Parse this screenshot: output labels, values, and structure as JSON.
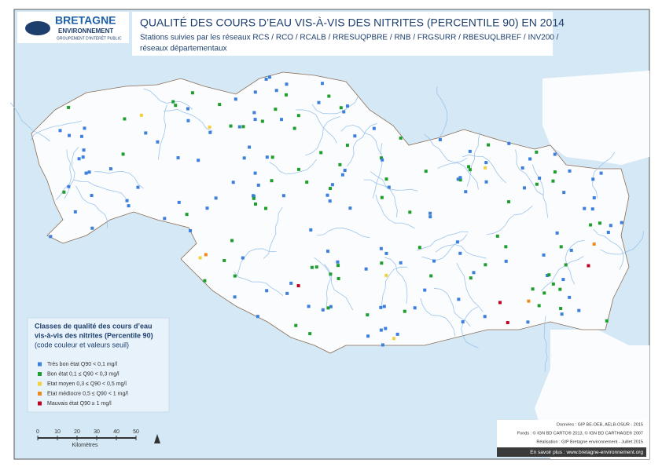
{
  "logo": {
    "name": "BRETAGNE",
    "sub": "ENVIRONNEMENT",
    "tagline": "GROUPEMENT D'INTÉRÊT PUBLIC"
  },
  "header": {
    "title": "QUALITÉ DES COURS D’EAU VIS-À-VIS DES NITRITES (PERCENTILE 90) EN 2014",
    "subtitle": [
      "Stations suivies par les réseaux RCS / RCO / RCALB / RRESUQPBRE / RNB / FRGSURR / RBESUQLBREF / INV200 /",
      "réseaux départementaux"
    ]
  },
  "legend": {
    "title": [
      "Classes de qualité des cours d’eau",
      "vis-à-vis des nitrites (Percentile 90)"
    ],
    "note": "(code couleur et valeurs seuil)",
    "items": [
      {
        "label": "Très bon état  Q90 < 0,1 mg/l",
        "color": "#3d7fdc"
      },
      {
        "label": "Bon état  0,1 ≤ Q90 < 0,3 mg/l",
        "color": "#1e9e2c"
      },
      {
        "label": "Etat moyen  0,3 ≤ Q90 < 0,5 mg/l",
        "color": "#f4d03a"
      },
      {
        "label": "Etat médiocre  0,5 ≤ Q90 < 1 mg/l",
        "color": "#ef8a1d"
      },
      {
        "label": "Mauvais état  Q90 ≥ 1 mg/l",
        "color": "#c0001c"
      }
    ]
  },
  "scale": {
    "ticks": [
      0,
      10,
      20,
      30,
      40,
      50
    ],
    "label": "Kilomètres"
  },
  "credits": {
    "lines": [
      "Données : GIP BE-OEB, AELB-OSUR - 2015",
      "Fonds : © IGN BD CARTO® 2013, © IGN BD CARTHAGE® 2007",
      "Réalisation : GIP Bretagne environnement - Juillet 2015"
    ],
    "link": "En savoir plus : www.bretagne-environnement.org"
  }
}
